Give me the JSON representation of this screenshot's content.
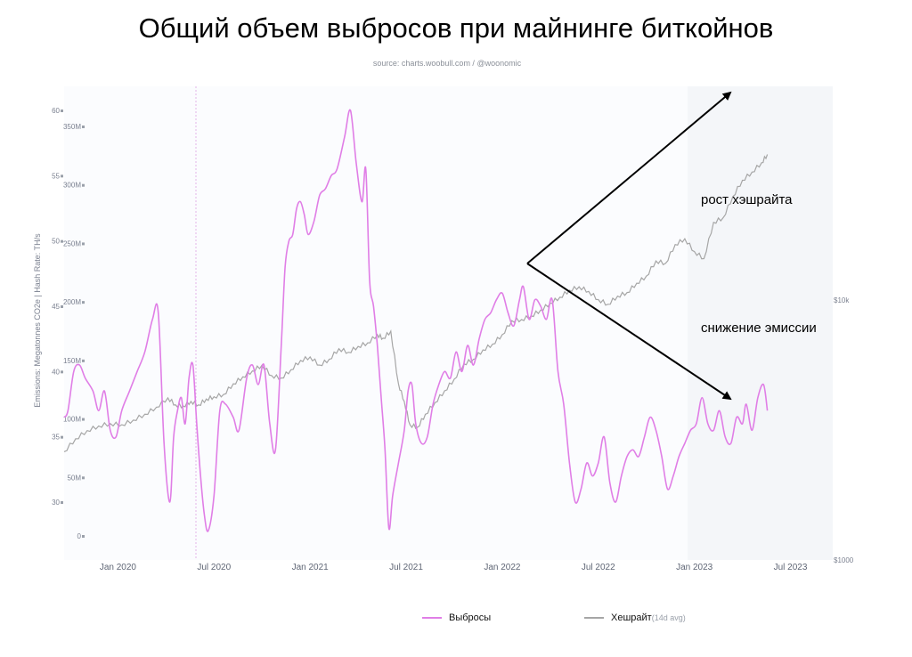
{
  "title": "Общий объем выбросов при майнинге биткойнов",
  "source": "source: charts.woobull.com / @woonomic",
  "annotations": {
    "hashrate_growth": "рост хэшрайта",
    "emissions_drop": "снижение эмиссии"
  },
  "colors": {
    "emissions": "#e07ee6",
    "hashrate": "#a6a6a6",
    "arrows": "#000000"
  },
  "legend": {
    "emissions": "Выбросы",
    "hashrate": "Хешрайт",
    "hashrate_suffix": "(14d avg)"
  },
  "chart_data": {
    "type": "line",
    "ylabel": "Emissions: Megatonnes CO2e  |  Hash Rate: TH/s",
    "x_ticks": [
      "Jan 2020",
      "Jul 2020",
      "Jan 2021",
      "Jul 2021",
      "Jan 2022",
      "Jul 2022",
      "Jan 2023",
      "Jul 2023"
    ],
    "x_tick_values": [
      2020.0,
      2020.5,
      2021.0,
      2021.5,
      2022.0,
      2022.5,
      2023.0,
      2023.5
    ],
    "xlim": [
      2019.72,
      2023.72
    ],
    "y_left_ticks": [
      60,
      55,
      50,
      45,
      40,
      35,
      30
    ],
    "y_left_range": [
      27.5,
      60
    ],
    "y_hash_ticks": [
      "350M",
      "300M",
      "250M",
      "200M",
      "150M",
      "100M",
      "50M",
      "0"
    ],
    "y_hash_range": [
      0,
      350
    ],
    "y_right_ticks": [
      "$10k",
      "$1000"
    ],
    "grid": false,
    "series": [
      {
        "name": "Выбросы",
        "axis": "left",
        "x": [
          2019.72,
          2019.74,
          2019.77,
          2019.8,
          2019.83,
          2019.87,
          2019.9,
          2019.93,
          2019.96,
          2019.99,
          2020.02,
          2020.06,
          2020.1,
          2020.14,
          2020.18,
          2020.21,
          2020.24,
          2020.27,
          2020.29,
          2020.31,
          2020.33,
          2020.35,
          2020.37,
          2020.39,
          2020.41,
          2020.43,
          2020.45,
          2020.47,
          2020.5,
          2020.53,
          2020.56,
          2020.6,
          2020.63,
          2020.67,
          2020.7,
          2020.73,
          2020.76,
          2020.79,
          2020.82,
          2020.85,
          2020.87,
          2020.89,
          2020.91,
          2020.93,
          2020.95,
          2020.97,
          2020.99,
          2021.02,
          2021.05,
          2021.08,
          2021.11,
          2021.14,
          2021.18,
          2021.21,
          2021.24,
          2021.27,
          2021.29,
          2021.31,
          2021.33,
          2021.35,
          2021.37,
          2021.39,
          2021.41,
          2021.43,
          2021.46,
          2021.49,
          2021.51,
          2021.53,
          2021.55,
          2021.58,
          2021.61,
          2021.64,
          2021.67,
          2021.7,
          2021.73,
          2021.76,
          2021.79,
          2021.82,
          2021.85,
          2021.88,
          2021.91,
          2021.94,
          2021.97,
          2022.0,
          2022.03,
          2022.06,
          2022.09,
          2022.11,
          2022.14,
          2022.17,
          2022.2,
          2022.23,
          2022.26,
          2022.29,
          2022.32,
          2022.35,
          2022.38,
          2022.41,
          2022.44,
          2022.47,
          2022.5,
          2022.53,
          2022.56,
          2022.59,
          2022.62,
          2022.65,
          2022.68,
          2022.71,
          2022.74,
          2022.77,
          2022.8,
          2022.83,
          2022.86,
          2022.89,
          2022.92,
          2022.95,
          2022.98,
          2023.01,
          2023.04,
          2023.07,
          2023.1,
          2023.13,
          2023.16,
          2023.19,
          2023.22,
          2023.25,
          2023.27,
          2023.3,
          2023.33,
          2023.36,
          2023.38
        ],
        "values": [
          36.5,
          37,
          40,
          40.5,
          39.5,
          38.5,
          37,
          38.5,
          35.5,
          35,
          37,
          38.5,
          40,
          41.5,
          44,
          44.5,
          34.5,
          30,
          35,
          37,
          38,
          36,
          39.5,
          40.5,
          36,
          32,
          29,
          27.8,
          30.5,
          37,
          37.5,
          36.5,
          35.5,
          39.5,
          40.5,
          39,
          40.5,
          36,
          34,
          42,
          48,
          50,
          50.5,
          52.5,
          53,
          52,
          50.5,
          51.5,
          53.5,
          54,
          55,
          55.5,
          58,
          60,
          56,
          53,
          55.5,
          47,
          45,
          42,
          38,
          34,
          28,
          30.5,
          33,
          35.5,
          38.5,
          39,
          36,
          34.5,
          35,
          37.5,
          39,
          40,
          39.5,
          41.5,
          40,
          42,
          40.5,
          42.5,
          44,
          44.5,
          45.5,
          46,
          44.5,
          43.5,
          45.5,
          46.5,
          44,
          45.5,
          45,
          44,
          45.5,
          40,
          37.5,
          33,
          30,
          31,
          33,
          32,
          33,
          35,
          31.5,
          30,
          32,
          33.5,
          34,
          33.5,
          35,
          36.5,
          35.5,
          33.5,
          31,
          32,
          33.5,
          34.5,
          35.5,
          36,
          38,
          36,
          35.5,
          37,
          35,
          34.5,
          36.5,
          36,
          37.5,
          35.5,
          38,
          39,
          37
        ]
      },
      {
        "name": "Хешрайт",
        "axis": "hash",
        "x": [
          2019.72,
          2019.78,
          2019.84,
          2019.9,
          2019.96,
          2020.02,
          2020.08,
          2020.14,
          2020.2,
          2020.26,
          2020.3,
          2020.34,
          2020.38,
          2020.42,
          2020.46,
          2020.5,
          2020.55,
          2020.6,
          2020.65,
          2020.7,
          2020.75,
          2020.8,
          2020.85,
          2020.9,
          2020.95,
          2021.0,
          2021.05,
          2021.1,
          2021.15,
          2021.2,
          2021.25,
          2021.3,
          2021.35,
          2021.38,
          2021.42,
          2021.46,
          2021.49,
          2021.52,
          2021.56,
          2021.6,
          2021.65,
          2021.7,
          2021.75,
          2021.8,
          2021.85,
          2021.9,
          2021.95,
          2022.0,
          2022.05,
          2022.1,
          2022.15,
          2022.2,
          2022.25,
          2022.3,
          2022.35,
          2022.4,
          2022.45,
          2022.5,
          2022.55,
          2022.6,
          2022.65,
          2022.7,
          2022.75,
          2022.8,
          2022.85,
          2022.9,
          2022.95,
          2023.0,
          2023.05,
          2023.1,
          2023.15,
          2023.2,
          2023.25,
          2023.3,
          2023.35,
          2023.38
        ],
        "values": [
          72,
          83,
          90,
          94,
          96,
          95,
          99,
          104,
          110,
          118,
          112,
          111,
          115,
          112,
          117,
          119,
          121,
          130,
          136,
          141,
          146,
          137,
          135,
          142,
          150,
          153,
          146,
          151,
          160,
          157,
          162,
          165,
          172,
          169,
          175,
          130,
          115,
          95,
          93,
          104,
          114,
          124,
          134,
          147,
          151,
          159,
          164,
          172,
          184,
          185,
          188,
          193,
          199,
          204,
          210,
          213,
          209,
          202,
          198,
          205,
          208,
          216,
          222,
          235,
          233,
          249,
          254,
          243,
          237,
          268,
          272,
          290,
          304,
          311,
          319,
          326
        ]
      }
    ]
  }
}
